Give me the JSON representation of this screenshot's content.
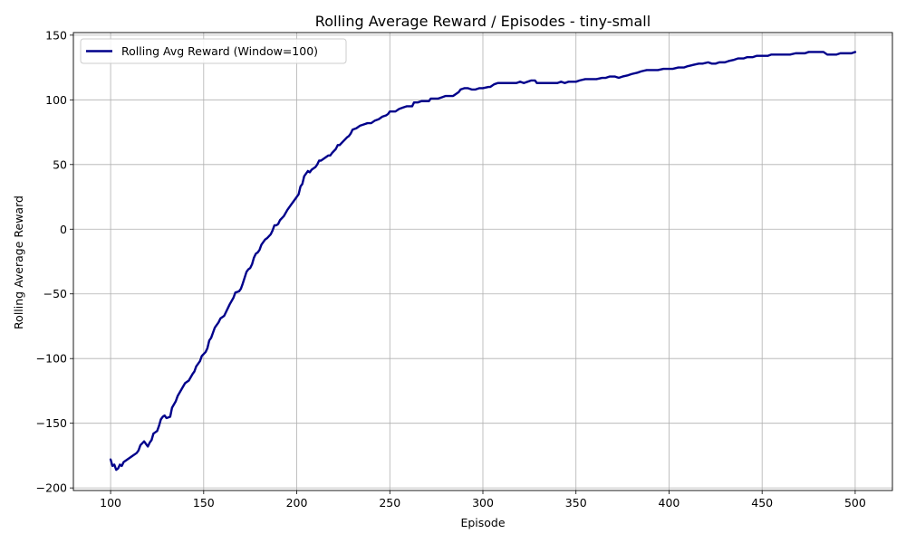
{
  "chart_data": {
    "type": "line",
    "title": "Rolling Average Reward / Episodes - tiny-small",
    "xlabel": "Episode",
    "ylabel": "Rolling Average Reward",
    "xlim": [
      80,
      520
    ],
    "ylim": [
      -202,
      152
    ],
    "x_ticks": [
      100,
      150,
      200,
      250,
      300,
      350,
      400,
      450,
      500
    ],
    "x_tick_labels": [
      "100",
      "150",
      "200",
      "250",
      "300",
      "350",
      "400",
      "450",
      "500"
    ],
    "y_ticks": [
      -200,
      -150,
      -100,
      -50,
      0,
      50,
      100,
      150
    ],
    "y_tick_labels": [
      "−200",
      "−150",
      "−100",
      "−50",
      "0",
      "50",
      "100",
      "150"
    ],
    "grid": true,
    "legend_position": "top-left",
    "series": [
      {
        "name": "Rolling Avg Reward (Window=100)",
        "color": "#00008b",
        "points": [
          [
            100,
            -178
          ],
          [
            101,
            -183
          ],
          [
            102,
            -182
          ],
          [
            103,
            -186
          ],
          [
            104,
            -185
          ],
          [
            105,
            -182
          ],
          [
            106,
            -183
          ],
          [
            107,
            -180
          ],
          [
            108,
            -179
          ],
          [
            110,
            -177
          ],
          [
            112,
            -175
          ],
          [
            114,
            -173
          ],
          [
            115,
            -171
          ],
          [
            116,
            -167
          ],
          [
            118,
            -164
          ],
          [
            119,
            -166
          ],
          [
            120,
            -168
          ],
          [
            121,
            -165
          ],
          [
            122,
            -163
          ],
          [
            123,
            -158
          ],
          [
            124,
            -157
          ],
          [
            125,
            -156
          ],
          [
            126,
            -152
          ],
          [
            127,
            -147
          ],
          [
            128,
            -145
          ],
          [
            129,
            -144
          ],
          [
            130,
            -146
          ],
          [
            132,
            -145
          ],
          [
            133,
            -138
          ],
          [
            135,
            -133
          ],
          [
            136,
            -129
          ],
          [
            138,
            -124
          ],
          [
            140,
            -119
          ],
          [
            142,
            -117
          ],
          [
            144,
            -112
          ],
          [
            145,
            -110
          ],
          [
            146,
            -106
          ],
          [
            148,
            -102
          ],
          [
            149,
            -98
          ],
          [
            151,
            -95
          ],
          [
            152,
            -92
          ],
          [
            153,
            -86
          ],
          [
            154,
            -84
          ],
          [
            155,
            -80
          ],
          [
            156,
            -76
          ],
          [
            158,
            -72
          ],
          [
            159,
            -69
          ],
          [
            161,
            -67
          ],
          [
            162,
            -64
          ],
          [
            164,
            -58
          ],
          [
            166,
            -53
          ],
          [
            167,
            -49
          ],
          [
            169,
            -48
          ],
          [
            170,
            -46
          ],
          [
            171,
            -42
          ],
          [
            173,
            -33
          ],
          [
            174,
            -31
          ],
          [
            175,
            -30
          ],
          [
            176,
            -27
          ],
          [
            177,
            -22
          ],
          [
            178,
            -19
          ],
          [
            179,
            -18
          ],
          [
            180,
            -16
          ],
          [
            181,
            -12
          ],
          [
            182,
            -10
          ],
          [
            183,
            -8
          ],
          [
            184,
            -7
          ],
          [
            186,
            -4
          ],
          [
            187,
            -1
          ],
          [
            188,
            3
          ],
          [
            189,
            3
          ],
          [
            190,
            4
          ],
          [
            191,
            7
          ],
          [
            193,
            10
          ],
          [
            195,
            15
          ],
          [
            197,
            19
          ],
          [
            198,
            21
          ],
          [
            200,
            25
          ],
          [
            201,
            27
          ],
          [
            202,
            33
          ],
          [
            203,
            35
          ],
          [
            204,
            41
          ],
          [
            206,
            45
          ],
          [
            207,
            44
          ],
          [
            208,
            46
          ],
          [
            210,
            48
          ],
          [
            211,
            50
          ],
          [
            212,
            53
          ],
          [
            213,
            53
          ],
          [
            215,
            55
          ],
          [
            217,
            57
          ],
          [
            218,
            57
          ],
          [
            219,
            59
          ],
          [
            221,
            62
          ],
          [
            222,
            65
          ],
          [
            223,
            65
          ],
          [
            225,
            68
          ],
          [
            227,
            71
          ],
          [
            228,
            72
          ],
          [
            229,
            74
          ],
          [
            230,
            77
          ],
          [
            232,
            78
          ],
          [
            234,
            80
          ],
          [
            236,
            81
          ],
          [
            238,
            82
          ],
          [
            240,
            82
          ],
          [
            242,
            84
          ],
          [
            244,
            85
          ],
          [
            246,
            87
          ],
          [
            248,
            88
          ],
          [
            249,
            89
          ],
          [
            250,
            91
          ],
          [
            252,
            91
          ],
          [
            253,
            91
          ],
          [
            255,
            93
          ],
          [
            257,
            94
          ],
          [
            259,
            95
          ],
          [
            261,
            95
          ],
          [
            262,
            95
          ],
          [
            263,
            98
          ],
          [
            265,
            98
          ],
          [
            267,
            99
          ],
          [
            269,
            99
          ],
          [
            271,
            99
          ],
          [
            272,
            101
          ],
          [
            274,
            101
          ],
          [
            276,
            101
          ],
          [
            278,
            102
          ],
          [
            280,
            103
          ],
          [
            282,
            103
          ],
          [
            284,
            103
          ],
          [
            285,
            104
          ],
          [
            287,
            106
          ],
          [
            288,
            108
          ],
          [
            290,
            109
          ],
          [
            292,
            109
          ],
          [
            294,
            108
          ],
          [
            296,
            108
          ],
          [
            298,
            109
          ],
          [
            300,
            109
          ],
          [
            303,
            110
          ],
          [
            304,
            110
          ],
          [
            306,
            112
          ],
          [
            308,
            113
          ],
          [
            312,
            113
          ],
          [
            315,
            113
          ],
          [
            318,
            113
          ],
          [
            320,
            114
          ],
          [
            322,
            113
          ],
          [
            324,
            114
          ],
          [
            326,
            115
          ],
          [
            328,
            115
          ],
          [
            329,
            113
          ],
          [
            332,
            113
          ],
          [
            335,
            113
          ],
          [
            338,
            113
          ],
          [
            340,
            113
          ],
          [
            342,
            114
          ],
          [
            344,
            113
          ],
          [
            346,
            114
          ],
          [
            350,
            114
          ],
          [
            352,
            115
          ],
          [
            355,
            116
          ],
          [
            358,
            116
          ],
          [
            361,
            116
          ],
          [
            364,
            117
          ],
          [
            366,
            117
          ],
          [
            368,
            118
          ],
          [
            371,
            118
          ],
          [
            373,
            117
          ],
          [
            375,
            118
          ],
          [
            378,
            119
          ],
          [
            380,
            120
          ],
          [
            383,
            121
          ],
          [
            385,
            122
          ],
          [
            388,
            123
          ],
          [
            392,
            123
          ],
          [
            394,
            123
          ],
          [
            397,
            124
          ],
          [
            400,
            124
          ],
          [
            402,
            124
          ],
          [
            405,
            125
          ],
          [
            408,
            125
          ],
          [
            410,
            126
          ],
          [
            413,
            127
          ],
          [
            416,
            128
          ],
          [
            418,
            128
          ],
          [
            421,
            129
          ],
          [
            423,
            128
          ],
          [
            425,
            128
          ],
          [
            427,
            129
          ],
          [
            430,
            129
          ],
          [
            432,
            130
          ],
          [
            435,
            131
          ],
          [
            437,
            132
          ],
          [
            440,
            132
          ],
          [
            442,
            133
          ],
          [
            445,
            133
          ],
          [
            447,
            134
          ],
          [
            450,
            134
          ],
          [
            453,
            134
          ],
          [
            455,
            135
          ],
          [
            457,
            135
          ],
          [
            460,
            135
          ],
          [
            462,
            135
          ],
          [
            465,
            135
          ],
          [
            468,
            136
          ],
          [
            470,
            136
          ],
          [
            473,
            136
          ],
          [
            475,
            137
          ],
          [
            478,
            137
          ],
          [
            480,
            137
          ],
          [
            483,
            137
          ],
          [
            485,
            135
          ],
          [
            488,
            135
          ],
          [
            490,
            135
          ],
          [
            492,
            136
          ],
          [
            495,
            136
          ],
          [
            498,
            136
          ],
          [
            500,
            137
          ]
        ]
      }
    ]
  }
}
